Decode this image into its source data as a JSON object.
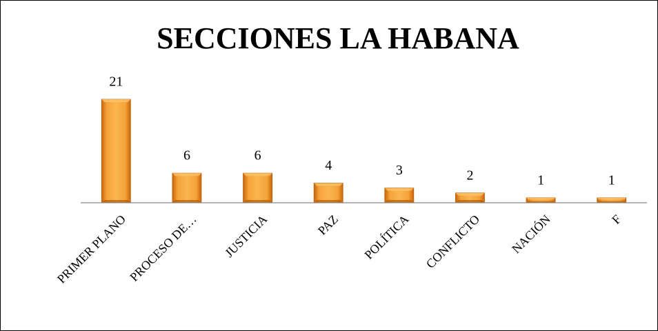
{
  "chart_data": {
    "type": "bar",
    "title": "SECCIONES LA HABANA",
    "categories": [
      "PRIMER PLANO",
      "PROCESO DE…",
      "JUSTICIA",
      "PAZ",
      "POLÍTICA",
      "CONFLICTO",
      "NACIÓN",
      "F"
    ],
    "values": [
      21,
      6,
      6,
      4,
      3,
      2,
      1,
      1
    ],
    "color": "#f0921e",
    "ylim": [
      0,
      21
    ],
    "grid": false
  }
}
